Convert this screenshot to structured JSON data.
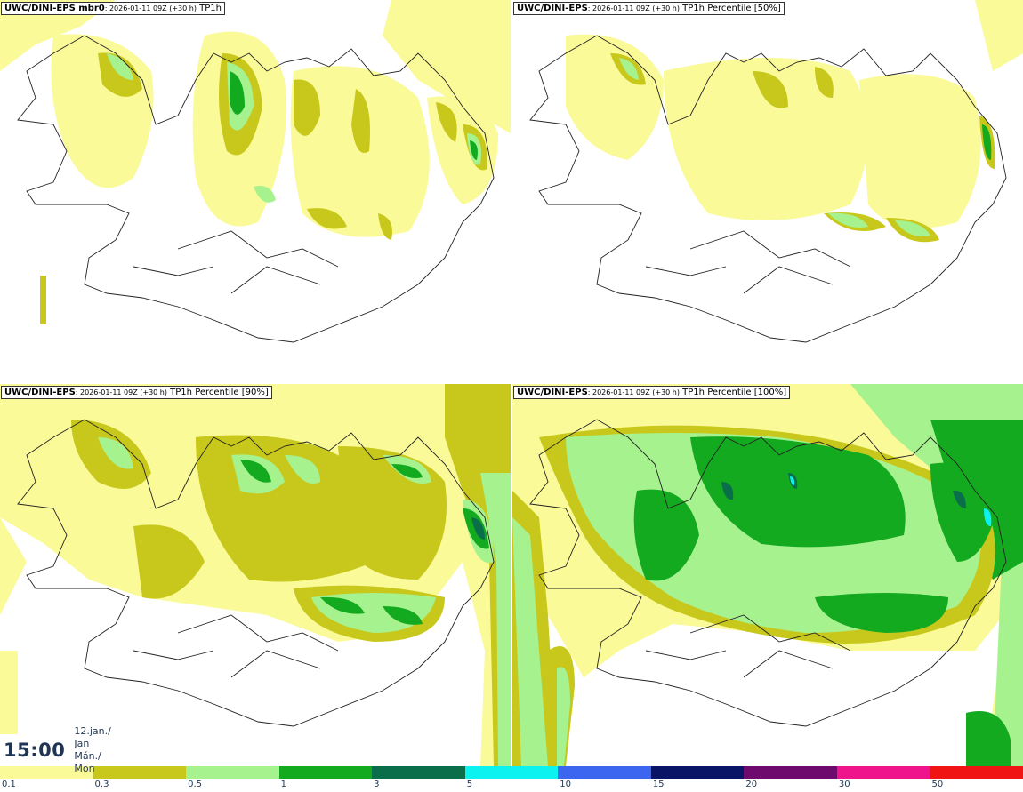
{
  "panels": [
    {
      "model": "UWC/DINI-EPS mbr0",
      "details": ": 2026-01-11 09Z (+30 h)",
      "field": "TP1h"
    },
    {
      "model": "UWC/DINI-EPS",
      "details": ": 2026-01-11 09Z (+30 h)",
      "field": "TP1h Percentile [50%]"
    },
    {
      "model": "UWC/DINI-EPS",
      "details": ": 2026-01-11 09Z (+30 h)",
      "field": "TP1h Percentile [90%]"
    },
    {
      "model": "UWC/DINI-EPS",
      "details": ": 2026-01-11 09Z (+30 h)",
      "field": "TP1h Percentile [100%]"
    }
  ],
  "valid_time": {
    "time": "15:00",
    "date_line1": "12.jan./ Jan",
    "date_line2": "Mán./ Mon"
  },
  "legend": {
    "colors": [
      "#fafa98",
      "#c8c81c",
      "#a6f28e",
      "#14aa20",
      "#0a6e4a",
      "#0cf2f0",
      "#3c66f0",
      "#0a1466",
      "#6e0a6e",
      "#f0148c",
      "#f01414"
    ],
    "ticks": [
      "0.1",
      "0.3",
      "0.5",
      "1",
      "3",
      "5",
      "10",
      "15",
      "20",
      "30",
      "50"
    ]
  }
}
